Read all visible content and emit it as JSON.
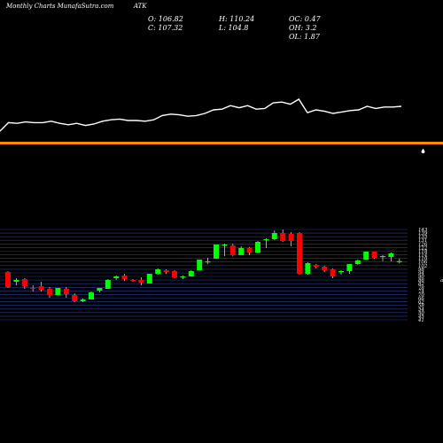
{
  "header": {
    "source": "Monthly Charts MunafaSutra.com",
    "symbol": "ATK",
    "open": "O: 106.82",
    "high": "H: 110.24",
    "oc": "OC: 0.47",
    "close": "C: 107.32",
    "low": "L: 104.8",
    "oh": "OH: 3.2",
    "ol": "OL: 1.87"
  },
  "colors": {
    "background": "#000000",
    "up": "#00ff00",
    "down": "#ff0000",
    "line": "#ffffff",
    "band": "#ff8c00",
    "grid": "#2a3a8c"
  },
  "chart_data": [
    {
      "type": "line",
      "title": "",
      "series": [
        {
          "values": [
            60,
            72,
            71,
            73,
            72,
            72,
            74,
            71,
            69,
            71,
            68,
            70,
            74,
            76,
            77,
            75,
            75,
            74,
            76,
            82,
            84,
            83,
            81,
            82,
            85,
            90,
            91,
            96,
            93,
            96,
            91,
            92,
            100,
            101,
            98,
            105,
            86,
            90,
            88,
            85,
            87,
            89,
            90,
            95,
            92,
            94,
            94,
            95
          ]
        }
      ],
      "reference_line": {
        "color": "orange"
      }
    },
    {
      "type": "candlestick",
      "ylim": [
        41,
        143
      ],
      "ytick_labels": [
        "143",
        "139",
        "135",
        "131",
        "126",
        "122",
        "118",
        "114",
        "110",
        "106",
        "102",
        "98",
        "94",
        "90",
        "86",
        "82",
        "78",
        "74",
        "70",
        "66",
        "62",
        "58",
        "54",
        "50",
        "45",
        "41"
      ],
      "candles": [
        {
          "o": 95,
          "h": 96,
          "l": 77,
          "c": 78
        },
        {
          "o": 84,
          "h": 88,
          "l": 80,
          "c": 86
        },
        {
          "o": 87,
          "h": 88,
          "l": 76,
          "c": 79
        },
        {
          "o": 77,
          "h": 80,
          "l": 73,
          "c": 76
        },
        {
          "o": 79,
          "h": 84,
          "l": 73,
          "c": 75
        },
        {
          "o": 76,
          "h": 78,
          "l": 66,
          "c": 69
        },
        {
          "o": 69,
          "h": 77,
          "l": 69,
          "c": 77
        },
        {
          "o": 76,
          "h": 78,
          "l": 66,
          "c": 70
        },
        {
          "o": 69,
          "h": 71,
          "l": 61,
          "c": 62
        },
        {
          "o": 62,
          "h": 65,
          "l": 61,
          "c": 64
        },
        {
          "o": 64,
          "h": 73,
          "l": 64,
          "c": 72
        },
        {
          "o": 74,
          "h": 77,
          "l": 72,
          "c": 77
        },
        {
          "o": 76,
          "h": 87,
          "l": 76,
          "c": 86
        },
        {
          "o": 88,
          "h": 91,
          "l": 86,
          "c": 90
        },
        {
          "o": 91,
          "h": 93,
          "l": 85,
          "c": 87
        },
        {
          "o": 86,
          "h": 87,
          "l": 84,
          "c": 85
        },
        {
          "o": 86,
          "h": 89,
          "l": 80,
          "c": 83
        },
        {
          "o": 82,
          "h": 93,
          "l": 82,
          "c": 93
        },
        {
          "o": 93,
          "h": 99,
          "l": 92,
          "c": 98
        },
        {
          "o": 97,
          "h": 98,
          "l": 93,
          "c": 95
        },
        {
          "o": 96,
          "h": 97,
          "l": 88,
          "c": 89
        },
        {
          "o": 89,
          "h": 91,
          "l": 87,
          "c": 90
        },
        {
          "o": 90,
          "h": 97,
          "l": 90,
          "c": 96
        },
        {
          "o": 97,
          "h": 109,
          "l": 97,
          "c": 109
        },
        {
          "o": 106,
          "h": 111,
          "l": 104,
          "c": 107
        },
        {
          "o": 110,
          "h": 126,
          "l": 110,
          "c": 126
        },
        {
          "o": 125,
          "h": 127,
          "l": 113,
          "c": 126
        },
        {
          "o": 125,
          "h": 127,
          "l": 113,
          "c": 114
        },
        {
          "o": 114,
          "h": 124,
          "l": 114,
          "c": 122
        },
        {
          "o": 122,
          "h": 123,
          "l": 114,
          "c": 117
        },
        {
          "o": 117,
          "h": 130,
          "l": 116,
          "c": 129
        },
        {
          "o": 131,
          "h": 133,
          "l": 122,
          "c": 132
        },
        {
          "o": 132,
          "h": 142,
          "l": 131,
          "c": 139
        },
        {
          "o": 139,
          "h": 143,
          "l": 129,
          "c": 130
        },
        {
          "o": 138,
          "h": 140,
          "l": 124,
          "c": 130
        },
        {
          "o": 139,
          "h": 140,
          "l": 92,
          "c": 93
        },
        {
          "o": 93,
          "h": 106,
          "l": 92,
          "c": 105
        },
        {
          "o": 103,
          "h": 104,
          "l": 99,
          "c": 101
        },
        {
          "o": 101,
          "h": 102,
          "l": 95,
          "c": 97
        },
        {
          "o": 98,
          "h": 99,
          "l": 88,
          "c": 90
        },
        {
          "o": 95,
          "h": 97,
          "l": 92,
          "c": 96
        },
        {
          "o": 96,
          "h": 104,
          "l": 93,
          "c": 104
        },
        {
          "o": 104,
          "h": 109,
          "l": 103,
          "c": 108
        },
        {
          "o": 109,
          "h": 118,
          "l": 109,
          "c": 118
        },
        {
          "o": 118,
          "h": 118,
          "l": 110,
          "c": 111
        },
        {
          "o": 112,
          "h": 114,
          "l": 107,
          "c": 113
        },
        {
          "o": 112,
          "h": 117,
          "l": 107,
          "c": 116
        },
        {
          "o": 106.82,
          "h": 110.24,
          "l": 104.8,
          "c": 107.32
        }
      ]
    }
  ]
}
